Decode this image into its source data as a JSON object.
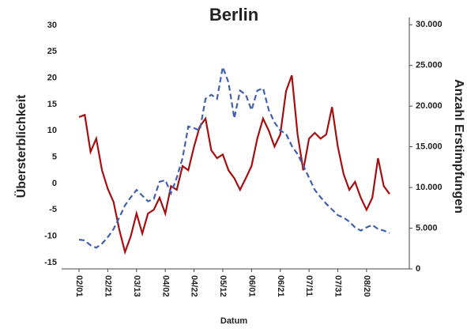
{
  "chart_data": {
    "type": "line",
    "title": "Berlin",
    "x_label": "Datum",
    "y_label": "Übersterblichkeit",
    "y2_label": "Anzahl Erstimpfungen",
    "x": [
      "02/01",
      "02/05",
      "02/09",
      "02/13",
      "02/17",
      "02/21",
      "02/25",
      "03/01",
      "03/05",
      "03/09",
      "03/13",
      "03/17",
      "03/21",
      "03/25",
      "03/29",
      "04/02",
      "04/06",
      "04/10",
      "04/14",
      "04/18",
      "04/22",
      "04/26",
      "04/30",
      "05/04",
      "05/08",
      "05/12",
      "05/16",
      "05/20",
      "05/24",
      "05/28",
      "06/01",
      "06/05",
      "06/09",
      "06/13",
      "06/17",
      "06/21",
      "06/25",
      "06/29",
      "07/03",
      "07/07",
      "07/11",
      "07/15",
      "07/19",
      "07/23",
      "07/27",
      "07/31",
      "08/04",
      "08/08",
      "08/12",
      "08/16",
      "08/20",
      "08/24",
      "08/28",
      "09/01",
      "09/05"
    ],
    "xticks": [
      "02/01",
      "02/21",
      "03/13",
      "04/02",
      "04/22",
      "05/12",
      "06/01",
      "06/21",
      "07/11",
      "07/31",
      "08/20"
    ],
    "series": [
      {
        "color": "#a50f0f",
        "dash": false,
        "values": [
          12.6,
          13,
          6,
          8.5,
          2.5,
          -1,
          -3.5,
          -8.7,
          -13,
          -10,
          -5.7,
          -9.5,
          -5.7,
          -5,
          -2.7,
          -5.7,
          -0.5,
          -1.2,
          3.3,
          2.5,
          7,
          10.8,
          12.3,
          6.3,
          4.8,
          5.5,
          2.5,
          1,
          -1.2,
          1,
          3.3,
          8.5,
          12.3,
          10,
          7,
          9.3,
          17.5,
          20.5,
          9.3,
          2.5,
          8.5,
          9.6,
          8.5,
          9.3,
          14.5,
          7,
          1.8,
          -1.2,
          0.3,
          -2.7,
          -5,
          -2.7,
          4.8,
          -0.5,
          -2
        ]
      },
      {
        "color": "#4060b0",
        "dash": true,
        "axis": "y2",
        "values": [
          3600,
          3500,
          2900,
          2600,
          3100,
          3900,
          4900,
          6300,
          7800,
          8800,
          9700,
          9000,
          8300,
          8600,
          10700,
          10900,
          9300,
          11200,
          13600,
          17500,
          17300,
          17000,
          20900,
          21400,
          20900,
          24800,
          22900,
          18500,
          21900,
          21400,
          19500,
          21900,
          22200,
          19500,
          18000,
          17000,
          16600,
          15100,
          14100,
          12700,
          11200,
          9700,
          8800,
          8000,
          7300,
          6600,
          6300,
          5800,
          5100,
          4700,
          5100,
          5400,
          4900,
          4700,
          4400
        ]
      }
    ],
    "ylim": [
      -16.2,
      31.5
    ],
    "yticks": [
      -15,
      -10,
      -5,
      0,
      5,
      10,
      15,
      20,
      25,
      30
    ],
    "y2lim": [
      0,
      30900
    ],
    "y2ticks": [
      0,
      {
        "value": 5000,
        "label": "5.000"
      },
      {
        "value": 10000,
        "label": "10.000"
      },
      {
        "value": 15000,
        "label": "15.000"
      },
      {
        "value": 20000,
        "label": "20.000"
      },
      {
        "value": 25000,
        "label": "25.000"
      },
      {
        "value": 30000,
        "label": "30.000"
      }
    ]
  }
}
